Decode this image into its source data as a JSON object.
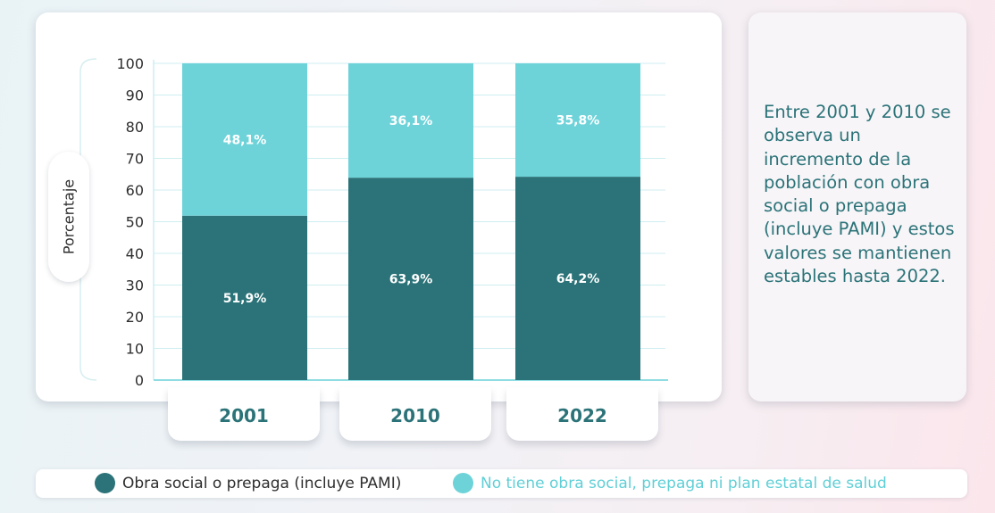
{
  "chart_data": {
    "type": "bar",
    "stacked": true,
    "categories": [
      "2001",
      "2010",
      "2022"
    ],
    "series": [
      {
        "name": "Obra social o prepaga (incluye PAMI)",
        "values": [
          51.9,
          63.9,
          64.2
        ],
        "labels": [
          "51,9%",
          "63,9%",
          "64,2%"
        ],
        "color": "#2b7378"
      },
      {
        "name": "No tiene obra social, prepaga ni plan estatal de salud",
        "values": [
          48.1,
          36.1,
          35.8
        ],
        "labels": [
          "48,1%",
          "36,1%",
          "35,8%"
        ],
        "color": "#6dd3d9"
      }
    ],
    "ylabel": "Porcentaje",
    "ylim": [
      0,
      100
    ],
    "yticks": [
      "0",
      "10",
      "20",
      "30",
      "40",
      "50",
      "60",
      "70",
      "80",
      "90",
      "100"
    ],
    "grid": true,
    "legend_position": "bottom"
  },
  "note": {
    "text": "Entre 2001 y 2010 se observa un incremento de la población con obra social o prepaga (incluye PAMI) y estos valores se mantienen estables hasta 2022."
  },
  "colors": {
    "accent_dark": "#2b7378",
    "accent_light": "#6dd3d9",
    "grid": "#cfeef0"
  }
}
